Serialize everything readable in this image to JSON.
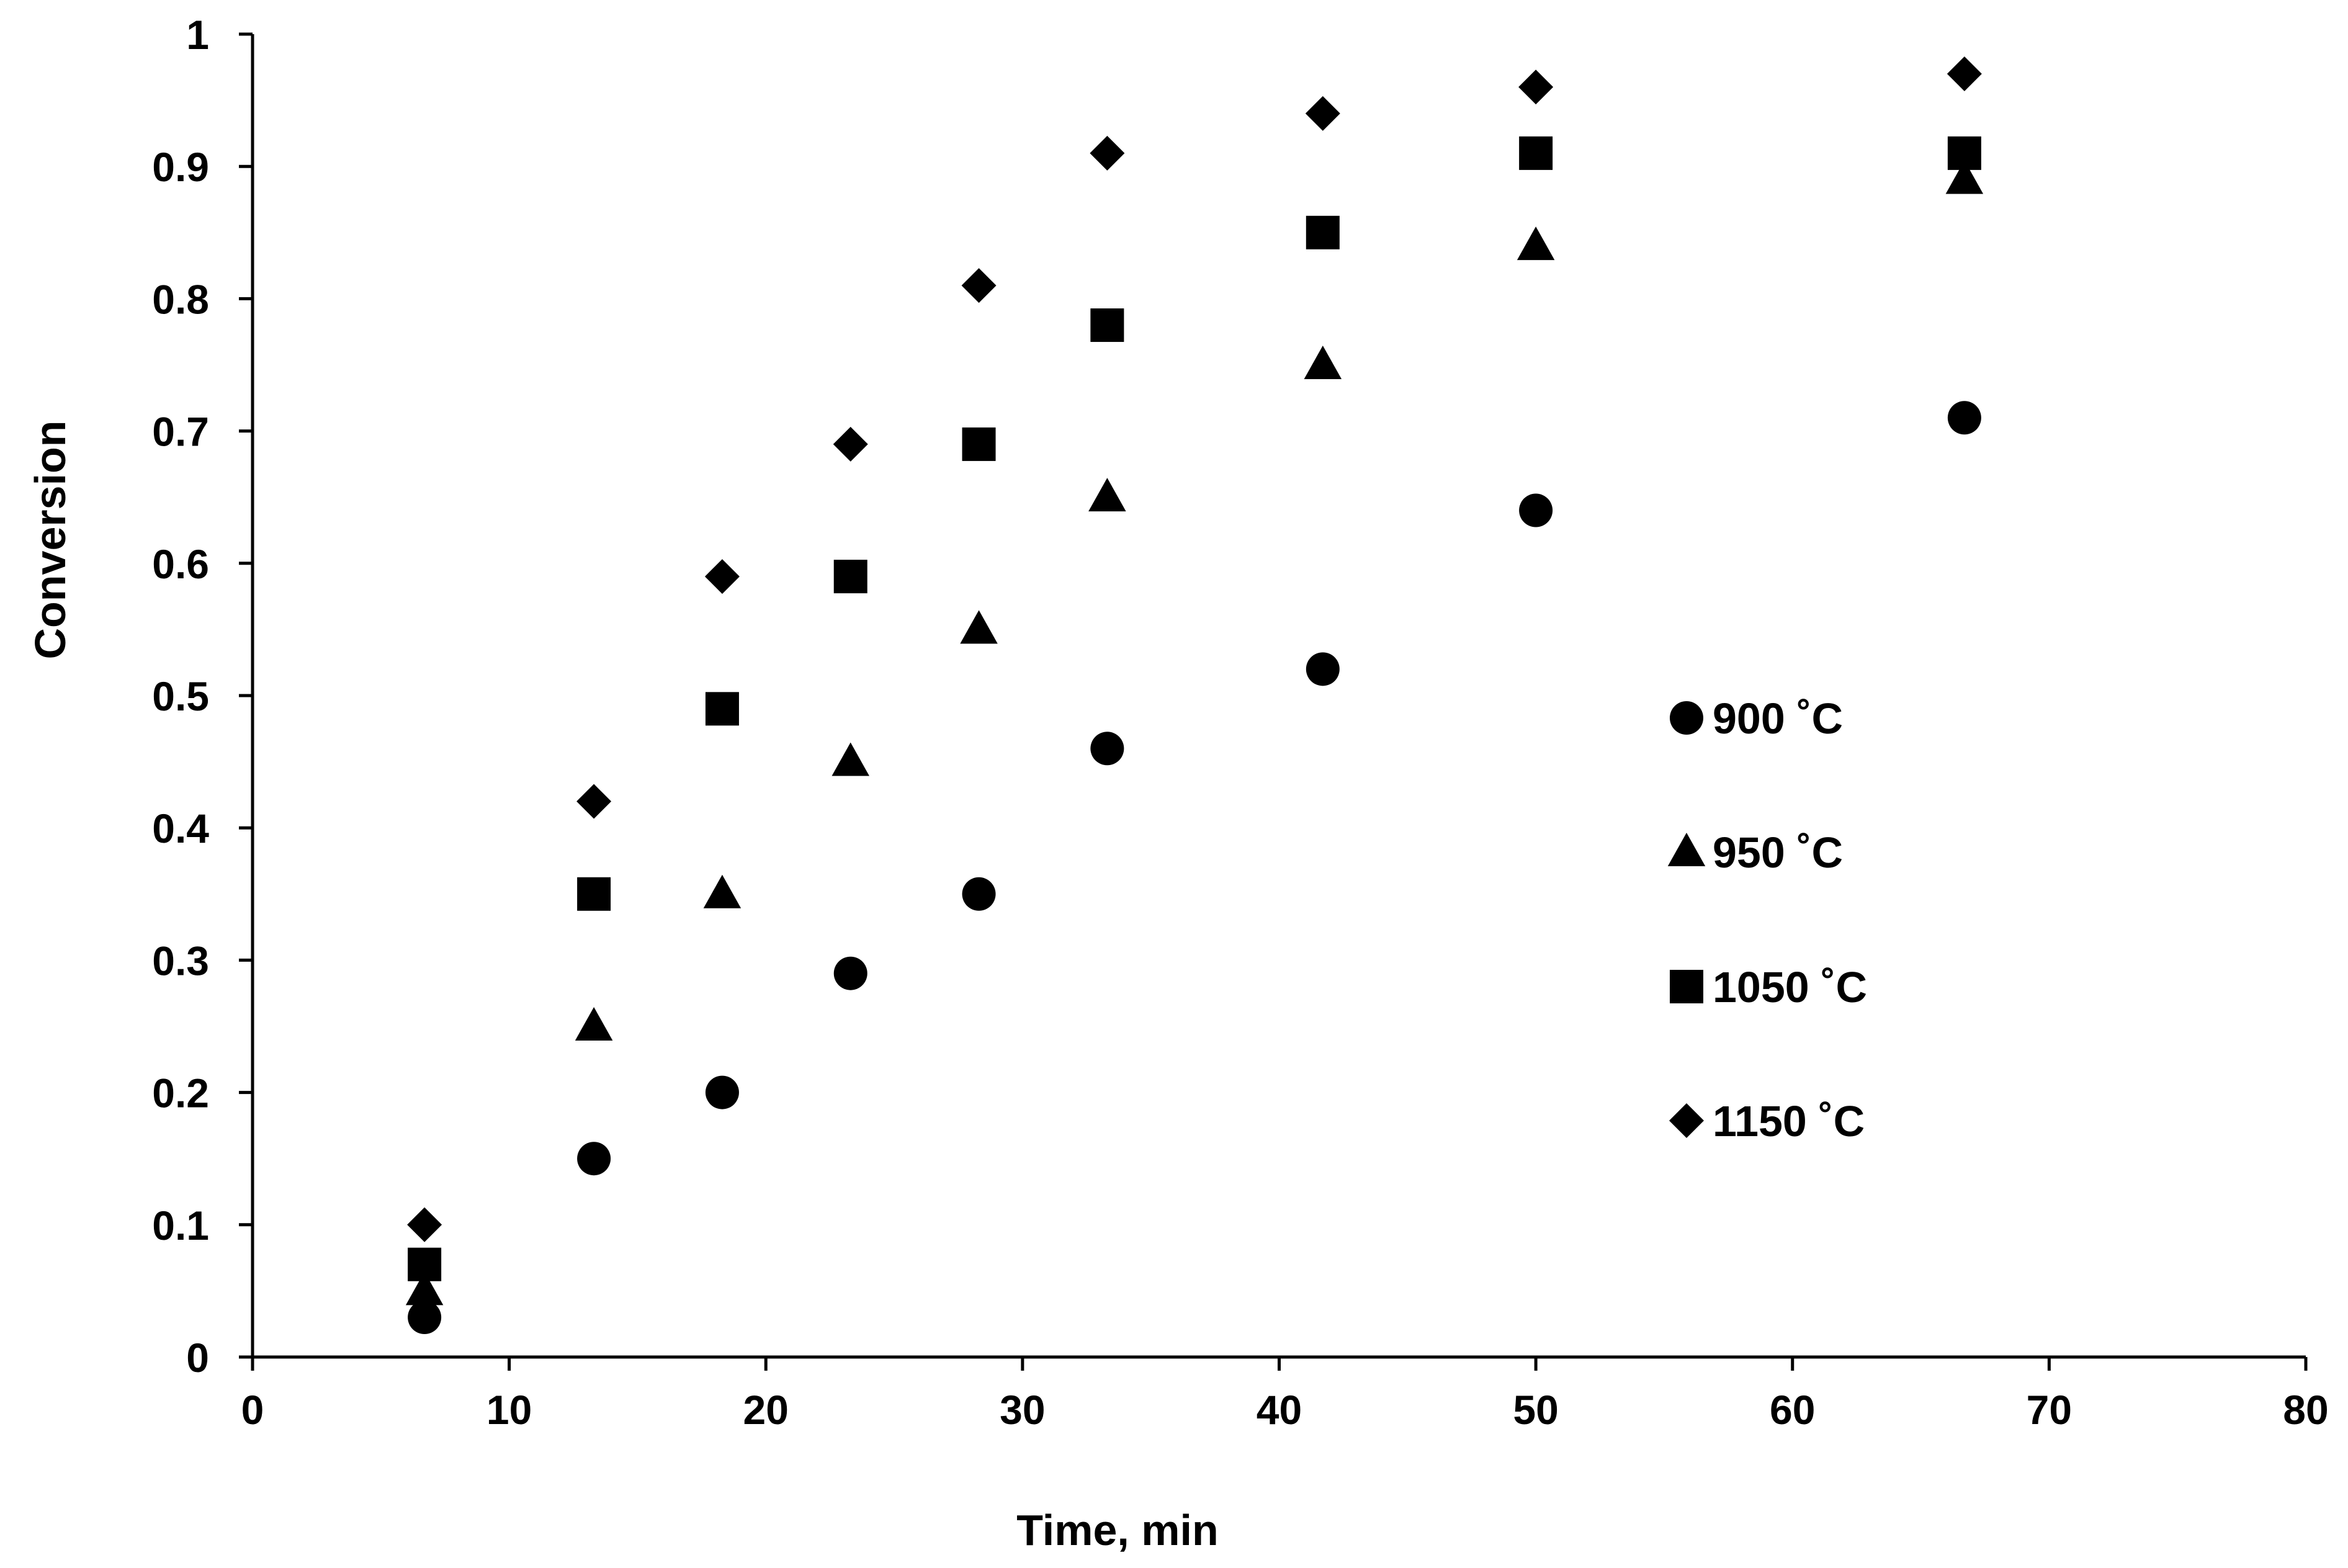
{
  "chart_data": {
    "type": "scatter",
    "title": "",
    "xlabel": "Time, min",
    "ylabel": "Conversion",
    "xlim": [
      0,
      80
    ],
    "ylim": [
      0,
      1
    ],
    "x_ticks": [
      0,
      10,
      20,
      30,
      40,
      50,
      60,
      70,
      80
    ],
    "y_ticks": [
      0,
      0.1,
      0.2,
      0.3,
      0.4,
      0.5,
      0.6,
      0.7,
      0.8,
      0.9,
      1
    ],
    "grid": false,
    "legend_position": "right",
    "series": [
      {
        "name": "900 ˚C",
        "marker": "circle",
        "x": [
          6.7,
          13.3,
          18.3,
          23.3,
          28.3,
          33.3,
          41.7,
          50,
          66.7
        ],
        "y": [
          0.03,
          0.15,
          0.2,
          0.29,
          0.35,
          0.46,
          0.52,
          0.64,
          0.71
        ]
      },
      {
        "name": "950 ˚C",
        "marker": "triangle",
        "x": [
          6.7,
          13.3,
          18.3,
          23.3,
          28.3,
          33.3,
          41.7,
          50,
          66.7
        ],
        "y": [
          0.05,
          0.25,
          0.35,
          0.45,
          0.55,
          0.65,
          0.75,
          0.84,
          0.89
        ]
      },
      {
        "name": "1050 ˚C",
        "marker": "square",
        "x": [
          6.7,
          13.3,
          18.3,
          23.3,
          28.3,
          33.3,
          41.7,
          50,
          66.7
        ],
        "y": [
          0.07,
          0.35,
          0.49,
          0.59,
          0.69,
          0.78,
          0.85,
          0.91,
          0.91
        ]
      },
      {
        "name": "1150 ˚C",
        "marker": "diamond",
        "x": [
          6.7,
          13.3,
          18.3,
          23.3,
          28.3,
          33.3,
          41.7,
          50,
          66.7
        ],
        "y": [
          0.1,
          0.42,
          0.59,
          0.69,
          0.81,
          0.91,
          0.94,
          0.96,
          0.97
        ]
      }
    ]
  }
}
